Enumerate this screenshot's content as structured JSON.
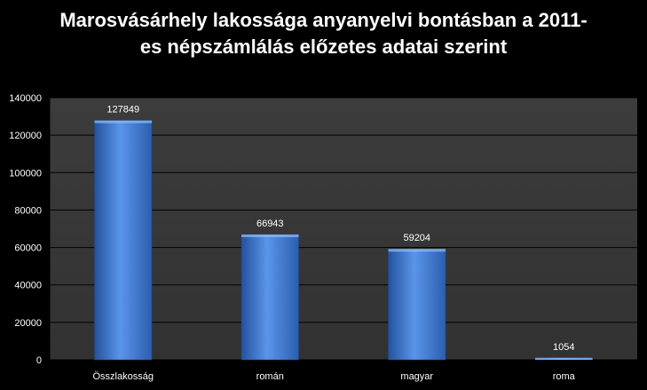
{
  "chart_data": {
    "type": "bar",
    "title_lines": [
      "Marosvásárhely  lakossága anyanyelvi bontásban a 2011-",
      "es népszámlálás előzetes adatai szerint"
    ],
    "xlabel": "",
    "ylabel": "",
    "categories": [
      "Összlakosság",
      "román",
      "magyar",
      "roma"
    ],
    "values": [
      127849,
      66943,
      59204,
      1054
    ],
    "data_labels": [
      "127849",
      "66943",
      "59204",
      "1054"
    ],
    "ylim": [
      0,
      140000
    ],
    "yticks": [
      0,
      20000,
      40000,
      60000,
      80000,
      100000,
      120000,
      140000
    ],
    "ytick_labels": [
      "0",
      "20000",
      "40000",
      "60000",
      "80000",
      "100000",
      "120000",
      "140000"
    ],
    "grid": true,
    "legend": "none",
    "colors": {
      "background": "#000000",
      "plot_area": "#3a3a3a",
      "grid": "#000000",
      "bar": "#3f7fd8",
      "bar_dark": "#24529c",
      "text": "#ffffff"
    }
  }
}
